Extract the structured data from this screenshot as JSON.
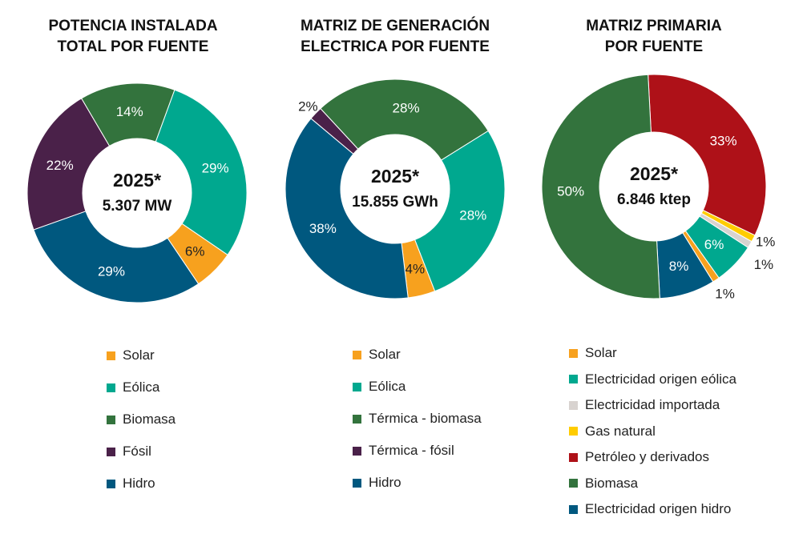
{
  "colors": {
    "solar": "#F7A11E",
    "eolica": "#00A88F",
    "biomasa": "#33733D",
    "fosil": "#4A2149",
    "hidro": "#00587F",
    "petroleo": "#AE1118",
    "gas": "#FFCC00",
    "importada": "#D8D3D0"
  },
  "chart_data": [
    {
      "type": "donut",
      "title": [
        "POTENCIA INSTALADA",
        "TOTAL POR FUENTE"
      ],
      "center_year": "2025*",
      "center_total": "5.307 MW",
      "slices": [
        {
          "name": "Eólica",
          "value": 29,
          "label": "29%",
          "color": "#00A88F"
        },
        {
          "name": "Solar",
          "value": 6,
          "label": "6%",
          "color": "#F7A11E"
        },
        {
          "name": "Hidro",
          "value": 29,
          "label": "29%",
          "color": "#00587F"
        },
        {
          "name": "Fósil",
          "value": 22,
          "label": "22%",
          "color": "#4A2149"
        },
        {
          "name": "Biomasa",
          "value": 14,
          "label": "14%",
          "color": "#33733D"
        }
      ],
      "legend": [
        {
          "name": "Solar",
          "color": "#F7A11E"
        },
        {
          "name": "Eólica",
          "color": "#00A88F"
        },
        {
          "name": "Biomasa",
          "color": "#33733D"
        },
        {
          "name": "Fósil",
          "color": "#4A2149"
        },
        {
          "name": "Hidro",
          "color": "#00587F"
        }
      ]
    },
    {
      "type": "donut",
      "title": [
        "MATRIZ DE GENERACIÓN",
        "ELECTRICA POR FUENTE"
      ],
      "center_year": "2025*",
      "center_total": "15.855 GWh",
      "slices": [
        {
          "name": "Eólica",
          "value": 28,
          "label": "28%",
          "color": "#00A88F"
        },
        {
          "name": "Solar",
          "value": 4,
          "label": "4%",
          "color": "#F7A11E"
        },
        {
          "name": "Hidro",
          "value": 38,
          "label": "38%",
          "color": "#00587F"
        },
        {
          "name": "Térmica - fósil",
          "value": 2,
          "label": "2%",
          "color": "#4A2149"
        },
        {
          "name": "Térmica - biomasa",
          "value": 28,
          "label": "28%",
          "color": "#33733D"
        }
      ],
      "legend": [
        {
          "name": "Solar",
          "color": "#F7A11E"
        },
        {
          "name": "Eólica",
          "color": "#00A88F"
        },
        {
          "name": "Térmica - biomasa",
          "color": "#33733D"
        },
        {
          "name": "Térmica - fósil",
          "color": "#4A2149"
        },
        {
          "name": "Hidro",
          "color": "#00587F"
        }
      ]
    },
    {
      "type": "donut",
      "title": [
        "MATRIZ PRIMARIA",
        "POR FUENTE"
      ],
      "center_year": "2025*",
      "center_total": "6.846 ktep",
      "slices": [
        {
          "name": "Petróleo y derivados",
          "value": 33,
          "label": "33%",
          "color": "#AE1118"
        },
        {
          "name": "Gas natural",
          "value": 1,
          "label": "1%",
          "color": "#FFCC00"
        },
        {
          "name": "Electricidad importada",
          "value": 1,
          "label": "1%",
          "color": "#D8D3D0"
        },
        {
          "name": "Electricidad origen eólica",
          "value": 6,
          "label": "6%",
          "color": "#00A88F"
        },
        {
          "name": "Solar",
          "value": 1,
          "label": "1%",
          "color": "#F7A11E"
        },
        {
          "name": "Electricidad origen hidro",
          "value": 8,
          "label": "8%",
          "color": "#00587F"
        },
        {
          "name": "Biomasa",
          "value": 50,
          "label": "50%",
          "color": "#33733D"
        }
      ],
      "legend": [
        {
          "name": "Solar",
          "color": "#F7A11E"
        },
        {
          "name": "Electricidad origen eólica",
          "color": "#00A88F"
        },
        {
          "name": "Electricidad importada",
          "color": "#D8D3D0"
        },
        {
          "name": "Gas natural",
          "color": "#FFCC00"
        },
        {
          "name": "Petróleo y derivados",
          "color": "#AE1118"
        },
        {
          "name": "Biomasa",
          "color": "#33733D"
        },
        {
          "name": "Electricidad origen hidro",
          "color": "#00587F"
        }
      ]
    }
  ]
}
